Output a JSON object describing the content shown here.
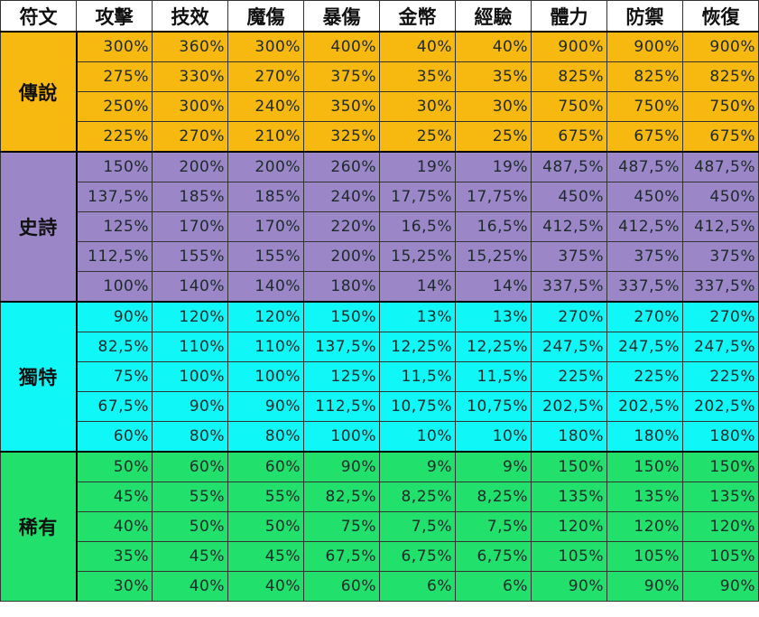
{
  "headers": [
    "符文",
    "攻擊",
    "技效",
    "魔傷",
    "暴傷",
    "金幣",
    "經驗",
    "體力",
    "防禦",
    "恢復"
  ],
  "tiers": [
    {
      "name": "傳說",
      "color": "#f7b80f",
      "rows": [
        [
          "300%",
          "360%",
          "300%",
          "400%",
          "40%",
          "40%",
          "900%",
          "900%",
          "900%"
        ],
        [
          "275%",
          "330%",
          "270%",
          "375%",
          "35%",
          "35%",
          "825%",
          "825%",
          "825%"
        ],
        [
          "250%",
          "300%",
          "240%",
          "350%",
          "30%",
          "30%",
          "750%",
          "750%",
          "750%"
        ],
        [
          "225%",
          "270%",
          "210%",
          "325%",
          "25%",
          "25%",
          "675%",
          "675%",
          "675%"
        ]
      ]
    },
    {
      "name": "史詩",
      "color": "#9b87c8",
      "rows": [
        [
          "150%",
          "200%",
          "200%",
          "260%",
          "19%",
          "19%",
          "487,5%",
          "487,5%",
          "487,5%"
        ],
        [
          "137,5%",
          "185%",
          "185%",
          "240%",
          "17,75%",
          "17,75%",
          "450%",
          "450%",
          "450%"
        ],
        [
          "125%",
          "170%",
          "170%",
          "220%",
          "16,5%",
          "16,5%",
          "412,5%",
          "412,5%",
          "412,5%"
        ],
        [
          "112,5%",
          "155%",
          "155%",
          "200%",
          "15,25%",
          "15,25%",
          "375%",
          "375%",
          "375%"
        ],
        [
          "100%",
          "140%",
          "140%",
          "180%",
          "14%",
          "14%",
          "337,5%",
          "337,5%",
          "337,5%"
        ]
      ]
    },
    {
      "name": "獨特",
      "color": "#0ff7f7",
      "rows": [
        [
          "90%",
          "120%",
          "120%",
          "150%",
          "13%",
          "13%",
          "270%",
          "270%",
          "270%"
        ],
        [
          "82,5%",
          "110%",
          "110%",
          "137,5%",
          "12,25%",
          "12,25%",
          "247,5%",
          "247,5%",
          "247,5%"
        ],
        [
          "75%",
          "100%",
          "100%",
          "125%",
          "11,5%",
          "11,5%",
          "225%",
          "225%",
          "225%"
        ],
        [
          "67,5%",
          "90%",
          "90%",
          "112,5%",
          "10,75%",
          "10,75%",
          "202,5%",
          "202,5%",
          "202,5%"
        ],
        [
          "60%",
          "80%",
          "80%",
          "100%",
          "10%",
          "10%",
          "180%",
          "180%",
          "180%"
        ]
      ]
    },
    {
      "name": "稀有",
      "color": "#22e06c",
      "rows": [
        [
          "50%",
          "60%",
          "60%",
          "90%",
          "9%",
          "9%",
          "150%",
          "150%",
          "150%"
        ],
        [
          "45%",
          "55%",
          "55%",
          "82,5%",
          "8,25%",
          "8,25%",
          "135%",
          "135%",
          "135%"
        ],
        [
          "40%",
          "50%",
          "50%",
          "75%",
          "7,5%",
          "7,5%",
          "120%",
          "120%",
          "120%"
        ],
        [
          "35%",
          "45%",
          "45%",
          "67,5%",
          "6,75%",
          "6,75%",
          "105%",
          "105%",
          "105%"
        ],
        [
          "30%",
          "40%",
          "40%",
          "60%",
          "6%",
          "6%",
          "90%",
          "90%",
          "90%"
        ]
      ]
    }
  ]
}
